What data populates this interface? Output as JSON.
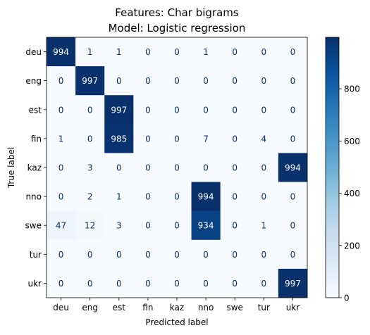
{
  "chart_data": {
    "type": "heatmap",
    "title_lines": [
      "Features: Char bigrams",
      "Model: Logistic regression"
    ],
    "xlabel": "Predicted label",
    "ylabel": "True label",
    "x_categories": [
      "deu",
      "eng",
      "est",
      "fin",
      "kaz",
      "nno",
      "swe",
      "tur",
      "ukr"
    ],
    "y_categories": [
      "deu",
      "eng",
      "est",
      "fin",
      "kaz",
      "nno",
      "swe",
      "tur",
      "ukr"
    ],
    "values": [
      [
        994,
        1,
        1,
        0,
        0,
        1,
        0,
        0,
        0
      ],
      [
        0,
        997,
        0,
        0,
        0,
        0,
        0,
        0,
        0
      ],
      [
        0,
        0,
        997,
        0,
        0,
        0,
        0,
        0,
        0
      ],
      [
        1,
        0,
        985,
        0,
        0,
        7,
        0,
        4,
        0
      ],
      [
        0,
        3,
        0,
        0,
        0,
        0,
        0,
        0,
        994
      ],
      [
        0,
        2,
        1,
        0,
        0,
        994,
        0,
        0,
        0
      ],
      [
        47,
        12,
        3,
        0,
        0,
        934,
        0,
        1,
        0
      ],
      [
        0,
        0,
        0,
        0,
        0,
        0,
        0,
        0,
        0
      ],
      [
        0,
        0,
        0,
        0,
        0,
        0,
        0,
        0,
        997
      ]
    ],
    "vmin": 0,
    "vmax": 997,
    "colormap": "Blues",
    "colorbar_ticks": [
      0,
      200,
      400,
      600,
      800
    ]
  }
}
